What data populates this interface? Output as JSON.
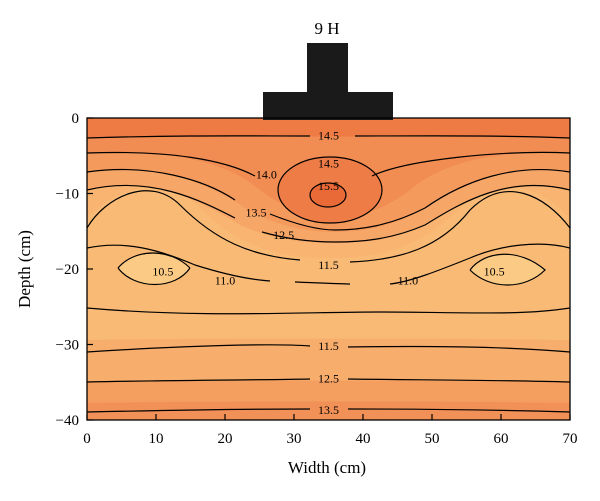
{
  "chart_data": {
    "type": "contour",
    "title": "9 H",
    "xlabel": "Width (cm)",
    "ylabel": "Depth (cm)",
    "xlim": [
      0,
      70
    ],
    "ylim": [
      -40,
      0
    ],
    "x_ticks": [
      "0",
      "10",
      "20",
      "30",
      "40",
      "50",
      "60",
      "70"
    ],
    "y_ticks": [
      "0",
      "−10",
      "−20",
      "−30",
      "−40"
    ],
    "grid": false,
    "colormap": {
      "low": "#fac27a",
      "mid": "#f6a667",
      "high": "#ee6f3c"
    },
    "contour_levels": [
      {
        "value": "15.5",
        "x": 35,
        "y": -9
      },
      {
        "value": "14.5",
        "x": 35,
        "y": -2.3
      },
      {
        "value": "14.5",
        "x": 35,
        "y": -6
      },
      {
        "value": "14.0",
        "x": 26,
        "y": -7.5
      },
      {
        "value": "13.5",
        "x": 24.5,
        "y": -12.5
      },
      {
        "value": "12.5",
        "x": 28.5,
        "y": -15.5
      },
      {
        "value": "11.5",
        "x": 35,
        "y": -19.5
      },
      {
        "value": "11.0",
        "x": 20,
        "y": -21.5
      },
      {
        "value": "11.0",
        "x": 46.5,
        "y": -21.5
      },
      {
        "value": "10.5",
        "x": 11,
        "y": -20.3
      },
      {
        "value": "10.5",
        "x": 59,
        "y": -20.3
      },
      {
        "value": "11.5",
        "x": 35,
        "y": -30.2
      },
      {
        "value": "12.5",
        "x": 35,
        "y": -34.5
      },
      {
        "value": "13.5",
        "x": 35,
        "y": -38.7
      }
    ]
  }
}
